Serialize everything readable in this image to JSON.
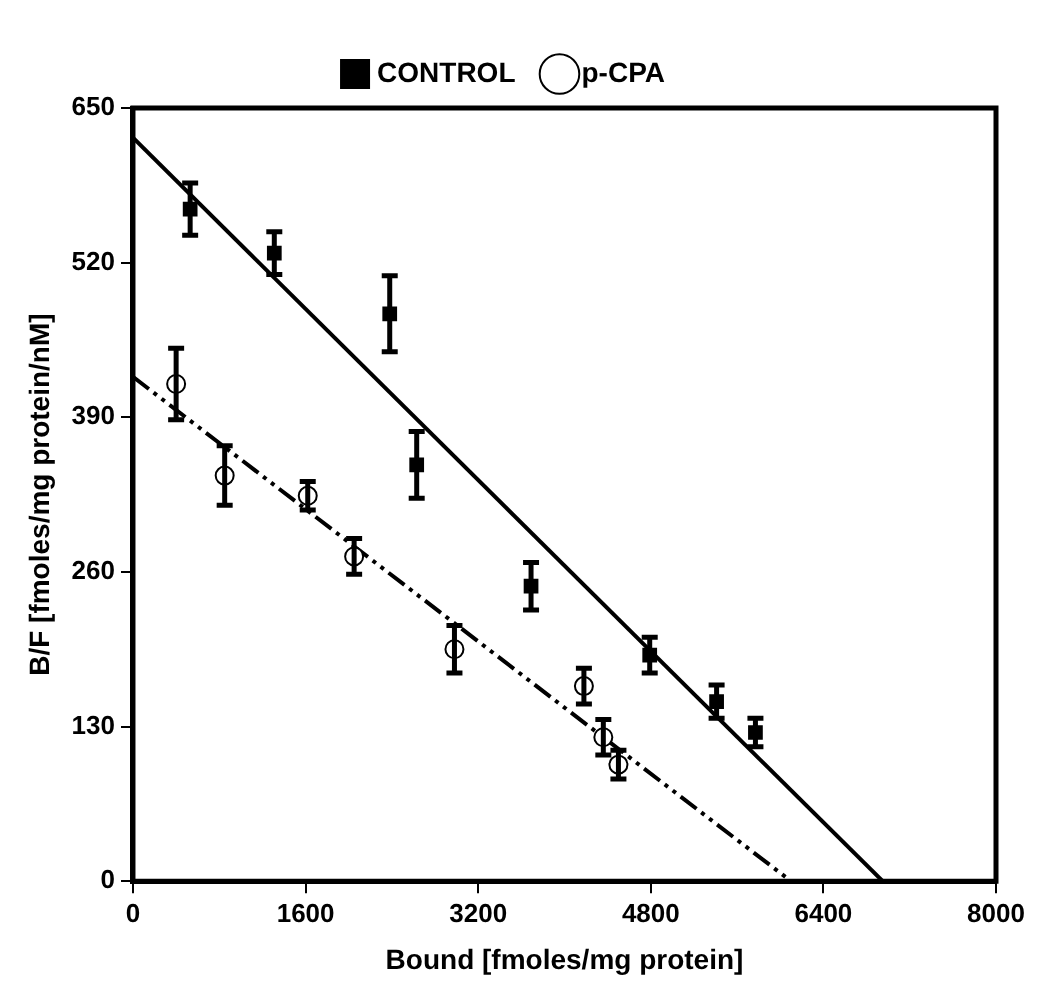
{
  "chart_data": {
    "type": "scatter",
    "xlabel": "Bound [fmoles/mg protein]",
    "ylabel": "B/F [fmoles/mg protein/nM]",
    "xlim": [
      0,
      8000
    ],
    "ylim": [
      0,
      650
    ],
    "xticks": [
      0,
      1600,
      3200,
      4800,
      6400,
      8000
    ],
    "yticks": [
      0,
      130,
      260,
      390,
      520,
      650
    ],
    "grid": false,
    "legend": "top",
    "series": [
      {
        "name": "CONTROL",
        "color": "#000000",
        "marker": "square",
        "x": [
          530,
          1310,
          2380,
          2630,
          3690,
          4790,
          5410,
          5770
        ],
        "values": [
          565,
          528,
          477,
          350,
          248,
          190,
          151,
          125
        ],
        "errors": [
          22,
          18,
          32,
          28,
          20,
          15,
          14,
          12
        ]
      },
      {
        "name": "p-CPA",
        "color": "#000000",
        "marker": "circle",
        "x": [
          400,
          850,
          1620,
          2050,
          2980,
          4180,
          4360,
          4500
        ],
        "values": [
          418,
          341,
          324,
          273,
          195,
          164,
          121,
          98
        ],
        "errors": [
          30,
          25,
          12,
          15,
          20,
          15,
          15,
          12
        ]
      },
      {
        "type": "line",
        "color": "#000000",
        "line_style": "solid",
        "marker": "none",
        "x": [
          0,
          6950
        ],
        "values": [
          625,
          0
        ]
      },
      {
        "type": "line",
        "color": "#000000",
        "line_style": "dashed",
        "marker": "none",
        "x": [
          0,
          6100
        ],
        "values": [
          424,
          0
        ]
      }
    ]
  }
}
